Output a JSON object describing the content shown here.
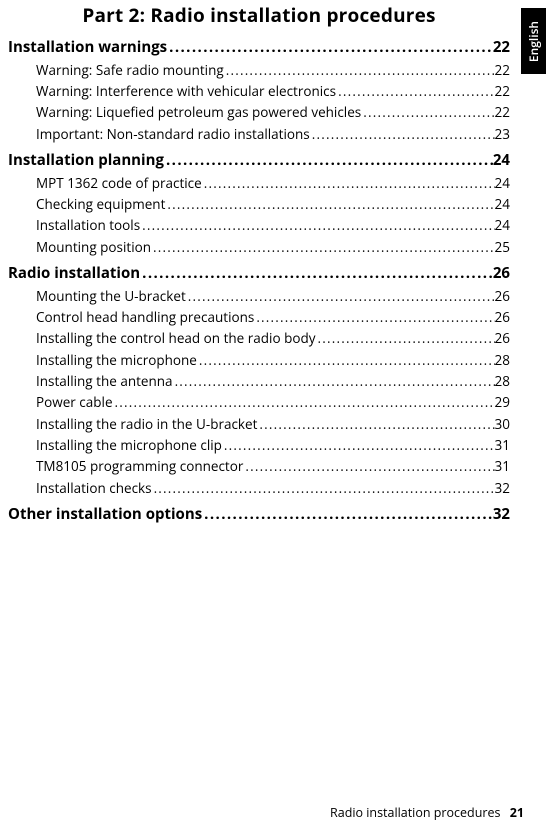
{
  "language_tab": "English",
  "title": "Part 2: Radio installation procedures",
  "toc": [
    {
      "level": 1,
      "label": "Installation warnings",
      "page": "22"
    },
    {
      "level": 2,
      "label": "Warning: Safe radio mounting",
      "page": "22"
    },
    {
      "level": 2,
      "label": "Warning: Interference with vehicular electronics",
      "page": "22"
    },
    {
      "level": 2,
      "label": "Warning: Liquefied petroleum gas powered vehicles",
      "page": "22"
    },
    {
      "level": 2,
      "label": "Important: Non-standard radio installations",
      "page": "23"
    },
    {
      "level": 1,
      "label": "Installation planning",
      "page": "24"
    },
    {
      "level": 2,
      "label": "MPT 1362 code of practice",
      "page": "24"
    },
    {
      "level": 2,
      "label": "Checking equipment",
      "page": "24"
    },
    {
      "level": 2,
      "label": "Installation tools",
      "page": "24"
    },
    {
      "level": 2,
      "label": "Mounting position",
      "page": "25"
    },
    {
      "level": 1,
      "label": "Radio installation",
      "page": "26"
    },
    {
      "level": 2,
      "label": "Mounting the U-bracket",
      "page": "26"
    },
    {
      "level": 2,
      "label": "Control head handling precautions",
      "page": "26"
    },
    {
      "level": 2,
      "label": "Installing the control head on the radio body",
      "page": "26"
    },
    {
      "level": 2,
      "label": "Installing the microphone",
      "page": "28"
    },
    {
      "level": 2,
      "label": "Installing the antenna",
      "page": "28"
    },
    {
      "level": 2,
      "label": "Power cable",
      "page": "29"
    },
    {
      "level": 2,
      "label": "Installing the radio in the U-bracket",
      "page": "30"
    },
    {
      "level": 2,
      "label": "Installing the microphone clip",
      "page": "31"
    },
    {
      "level": 2,
      "label": "TM8105 programming connector",
      "page": "31"
    },
    {
      "level": 2,
      "label": "Installation checks",
      "page": "32"
    },
    {
      "level": 1,
      "label": "Other installation options",
      "page": "32"
    }
  ],
  "footer": {
    "text": "Radio installation procedures",
    "page": "21"
  }
}
